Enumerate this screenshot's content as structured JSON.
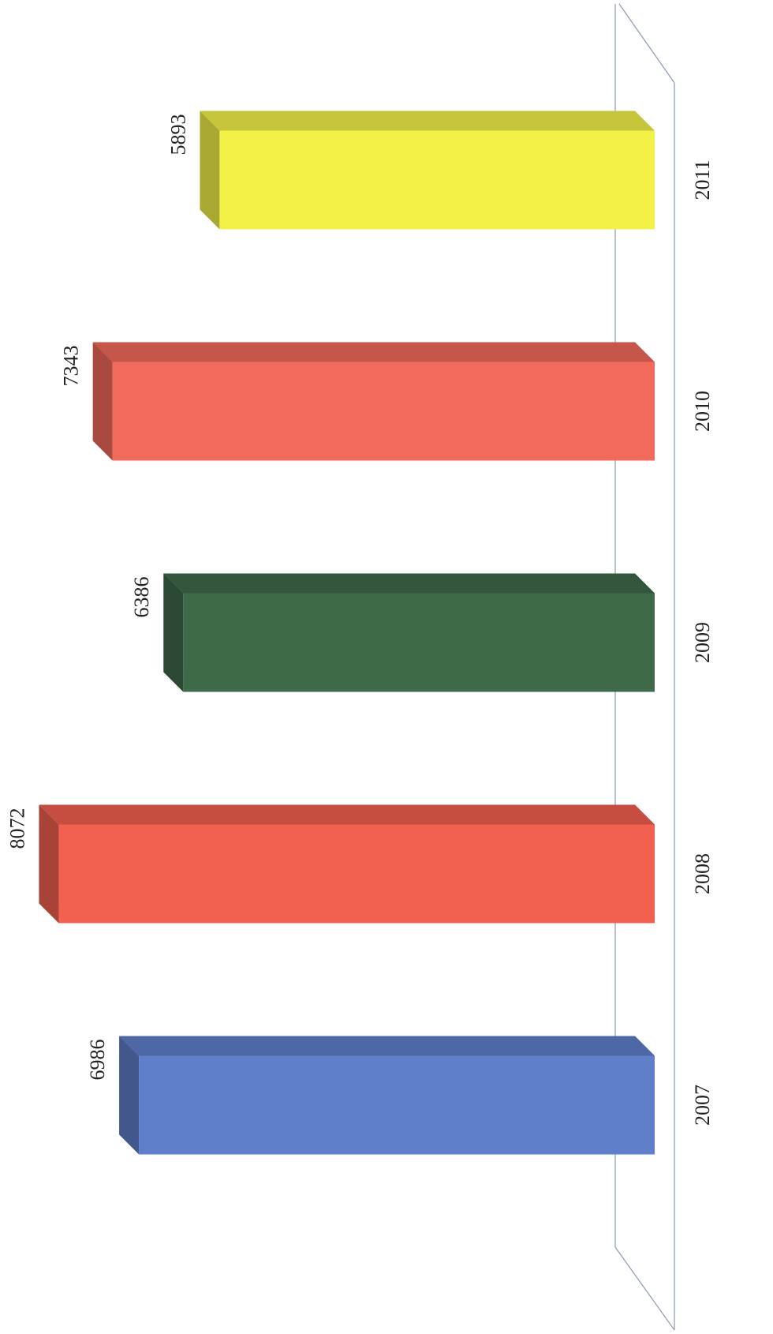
{
  "chart_data": {
    "type": "bar",
    "orientation": "rotated-3d",
    "categories": [
      "2007",
      "2008",
      "2009",
      "2010",
      "2011"
    ],
    "values": [
      6986,
      8072,
      6386,
      7343,
      5893
    ],
    "colors": [
      "#5f7fca",
      "#f2604f",
      "#3f6a4a",
      "#f16a5b",
      "#f3f148"
    ],
    "data_labels": true
  }
}
